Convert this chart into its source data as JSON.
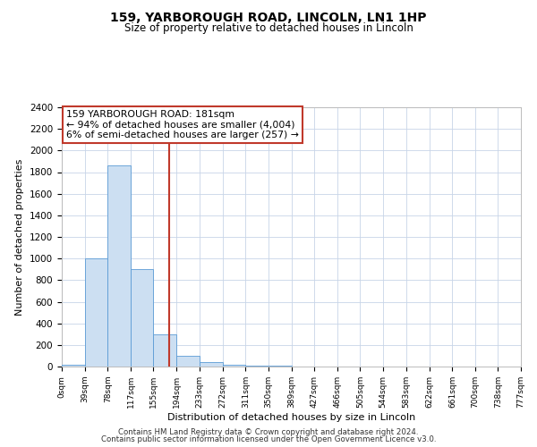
{
  "title": "159, YARBOROUGH ROAD, LINCOLN, LN1 1HP",
  "subtitle": "Size of property relative to detached houses in Lincoln",
  "xlabel": "Distribution of detached houses by size in Lincoln",
  "ylabel": "Number of detached properties",
  "footer_lines": [
    "Contains HM Land Registry data © Crown copyright and database right 2024.",
    "Contains public sector information licensed under the Open Government Licence v3.0."
  ],
  "bin_edges": [
    0,
    39,
    78,
    117,
    155,
    194,
    233,
    272,
    311,
    350,
    389,
    427,
    466,
    505,
    544,
    583,
    622,
    661,
    700,
    738,
    777
  ],
  "bin_counts": [
    20,
    1005,
    1860,
    905,
    300,
    100,
    45,
    20,
    5,
    5,
    0,
    0,
    0,
    0,
    0,
    0,
    0,
    0,
    0,
    0
  ],
  "bar_facecolor": "#ccdff2",
  "bar_edgecolor": "#5b9bd5",
  "property_value": 181,
  "red_line_color": "#c0392b",
  "annotation_box_edgecolor": "#c0392b",
  "annotation_line1": "159 YARBOROUGH ROAD: 181sqm",
  "annotation_line2": "← 94% of detached houses are smaller (4,004)",
  "annotation_line3": "6% of semi-detached houses are larger (257) →",
  "ylim": [
    0,
    2400
  ],
  "yticks": [
    0,
    200,
    400,
    600,
    800,
    1000,
    1200,
    1400,
    1600,
    1800,
    2000,
    2200,
    2400
  ],
  "background_color": "#ffffff",
  "grid_color": "#c8d4e8",
  "tick_labels": [
    "0sqm",
    "39sqm",
    "78sqm",
    "117sqm",
    "155sqm",
    "194sqm",
    "233sqm",
    "272sqm",
    "311sqm",
    "350sqm",
    "389sqm",
    "427sqm",
    "466sqm",
    "505sqm",
    "544sqm",
    "583sqm",
    "622sqm",
    "661sqm",
    "700sqm",
    "738sqm",
    "777sqm"
  ]
}
